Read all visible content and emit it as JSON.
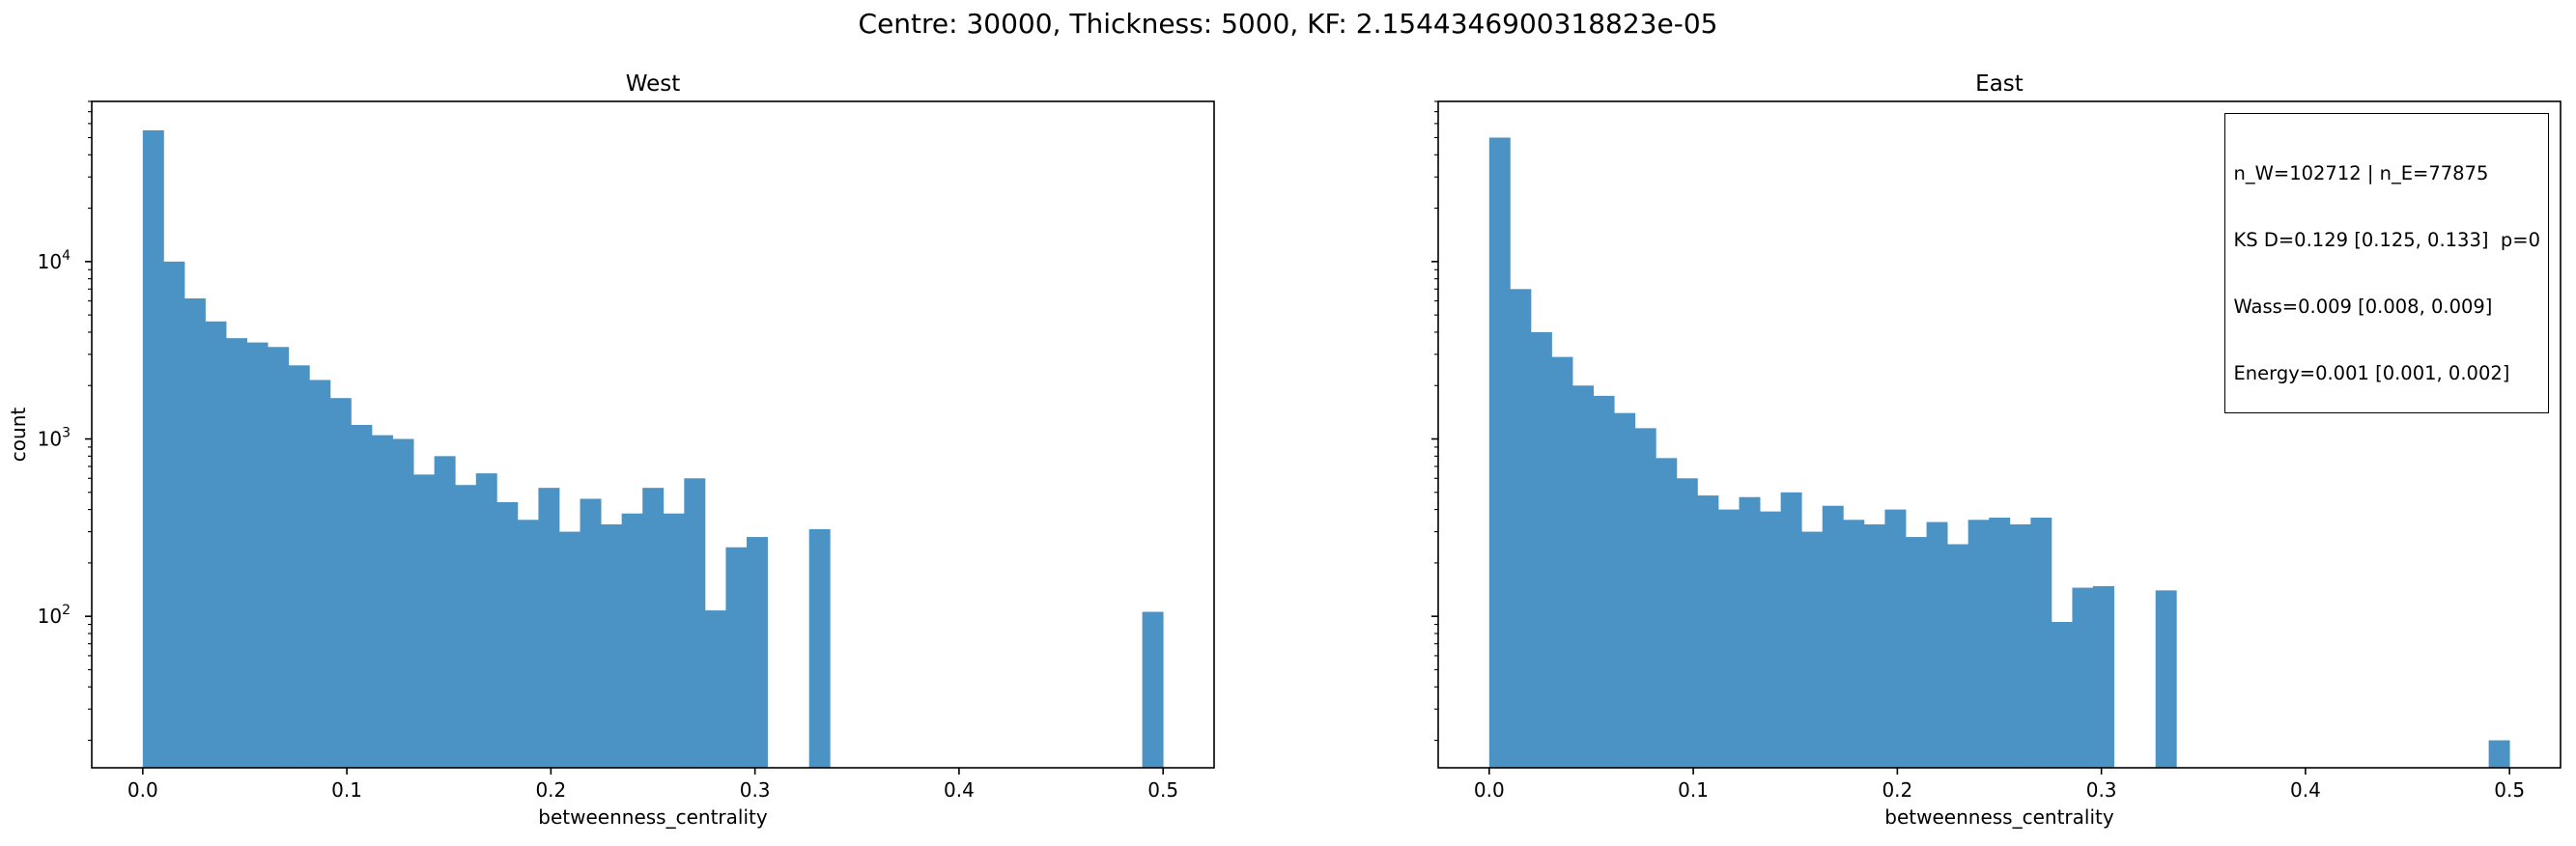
{
  "suptitle": "Centre: 30000, Thickness: 5000, KF: 2.1544346900318823e-05",
  "colors": {
    "bar": "#4c93c5",
    "axis": "#000000"
  },
  "chart_data": [
    {
      "type": "bar",
      "title": "West",
      "xlabel": "betweenness_centrality",
      "ylabel": "count",
      "yscale": "log",
      "xlim": [
        -0.025,
        0.525
      ],
      "ylim": [
        14,
        80000
      ],
      "bin_width": 0.01020408,
      "xticks": [
        0.0,
        0.1,
        0.2,
        0.3,
        0.4,
        0.5
      ],
      "xtick_labels": [
        "0.0",
        "0.1",
        "0.2",
        "0.3",
        "0.4",
        "0.5"
      ],
      "yticks": [
        100,
        1000,
        10000
      ],
      "ytick_labels": [
        "10",
        "10",
        "10"
      ],
      "ytick_exps": [
        "2",
        "3",
        "4"
      ],
      "values": [
        55000,
        10000,
        6200,
        4600,
        3700,
        3500,
        3300,
        2600,
        2150,
        1700,
        1200,
        1050,
        1000,
        630,
        800,
        550,
        640,
        440,
        350,
        530,
        300,
        460,
        330,
        380,
        530,
        380,
        600,
        108,
        245,
        280,
        0,
        0,
        310,
        0,
        0,
        0,
        0,
        0,
        0,
        0,
        0,
        0,
        0,
        0,
        0,
        0,
        0,
        0,
        106
      ]
    },
    {
      "type": "bar",
      "title": "East",
      "xlabel": "betweenness_centrality",
      "ylabel": "",
      "yscale": "log",
      "xlim": [
        -0.025,
        0.525
      ],
      "ylim": [
        14,
        80000
      ],
      "bin_width": 0.01020408,
      "xticks": [
        0.0,
        0.1,
        0.2,
        0.3,
        0.4,
        0.5
      ],
      "xtick_labels": [
        "0.0",
        "0.1",
        "0.2",
        "0.3",
        "0.4",
        "0.5"
      ],
      "yticks": [
        100,
        1000,
        10000
      ],
      "ytick_labels": [],
      "ytick_exps": [],
      "values": [
        50000,
        7000,
        4000,
        2900,
        2000,
        1750,
        1400,
        1150,
        780,
        600,
        480,
        400,
        470,
        390,
        500,
        300,
        420,
        350,
        330,
        400,
        280,
        340,
        255,
        350,
        360,
        330,
        360,
        93,
        145,
        148,
        0,
        0,
        140,
        0,
        0,
        0,
        0,
        0,
        0,
        0,
        0,
        0,
        0,
        0,
        0,
        0,
        0,
        0,
        20
      ],
      "annotation": {
        "lines": [
          "n_W=102712 | n_E=77875",
          "KS D=0.129 [0.125, 0.133]  p=0",
          "Wass=0.009 [0.008, 0.009]",
          "Energy=0.001 [0.001, 0.002]"
        ]
      }
    }
  ]
}
